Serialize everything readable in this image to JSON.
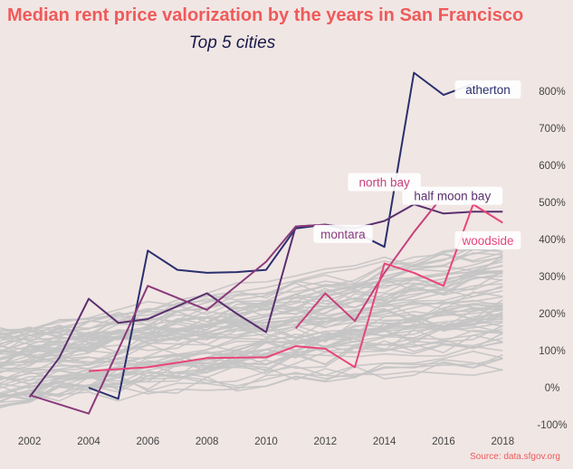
{
  "chart_data": {
    "type": "line",
    "title": "Median rent price valorization by the years in San Francisco",
    "subtitle": "Top 5 cities",
    "source": "Source: data.sfgov.org",
    "xlim": [
      2001,
      2019
    ],
    "ylim": [
      -100,
      900
    ],
    "x_ticks": [
      2002,
      2004,
      2006,
      2008,
      2010,
      2012,
      2014,
      2016,
      2018
    ],
    "y_ticks": [
      {
        "value": -100,
        "label": "-100%"
      },
      {
        "value": 0,
        "label": "0%"
      },
      {
        "value": 100,
        "label": "100%"
      },
      {
        "value": 200,
        "label": "200%"
      },
      {
        "value": 300,
        "label": "300%"
      },
      {
        "value": 400,
        "label": "400%"
      },
      {
        "value": 500,
        "label": "500%"
      },
      {
        "value": 600,
        "label": "600%"
      },
      {
        "value": 700,
        "label": "700%"
      },
      {
        "value": 800,
        "label": "800%"
      }
    ],
    "y_axis_position": "right",
    "grid": false,
    "background_color": "#f0e6e4",
    "highlight_series": [
      {
        "name": "atherton",
        "color": "#2a2f6e",
        "label_pos": [
          2017.5,
          805
        ],
        "x": [
          2004,
          2005,
          2006,
          2007,
          2008,
          2009,
          2010,
          2011,
          2012,
          2013,
          2014,
          2015,
          2016,
          2017
        ],
        "values": [
          0,
          -30,
          370,
          318,
          310,
          312,
          318,
          430,
          440,
          420,
          380,
          850,
          790,
          820
        ]
      },
      {
        "name": "half moon bay",
        "color": "#5a2f6e",
        "label_pos": [
          2016.3,
          518
        ],
        "x": [
          2002,
          2003,
          2004,
          2005,
          2006,
          2007,
          2008,
          2009,
          2010,
          2011,
          2012,
          2013,
          2014,
          2015,
          2016,
          2017,
          2018
        ],
        "values": [
          -25,
          80,
          240,
          175,
          185,
          220,
          255,
          200,
          150,
          435,
          440,
          430,
          450,
          495,
          470,
          475,
          475
        ]
      },
      {
        "name": "montara",
        "color": "#8a3a7a",
        "label_pos": [
          2012.6,
          415
        ],
        "x": [
          2002,
          2004,
          2006,
          2008,
          2010,
          2011,
          2012
        ],
        "values": [
          -20,
          -70,
          275,
          210,
          340,
          435,
          440
        ]
      },
      {
        "name": "north bay",
        "color": "#c7407a",
        "label_pos": [
          2014.0,
          555
        ],
        "x": [
          2011,
          2012,
          2013,
          2014,
          2015,
          2016
        ],
        "values": [
          160,
          255,
          180,
          310,
          420,
          520
        ]
      },
      {
        "name": "woodside",
        "color": "#e8457a",
        "label_pos": [
          2017.5,
          398
        ],
        "x": [
          2004,
          2006,
          2008,
          2010,
          2011,
          2012,
          2013,
          2014,
          2015,
          2016,
          2017,
          2018
        ],
        "values": [
          45,
          55,
          80,
          82,
          112,
          105,
          55,
          335,
          310,
          275,
          495,
          445
        ]
      }
    ]
  }
}
